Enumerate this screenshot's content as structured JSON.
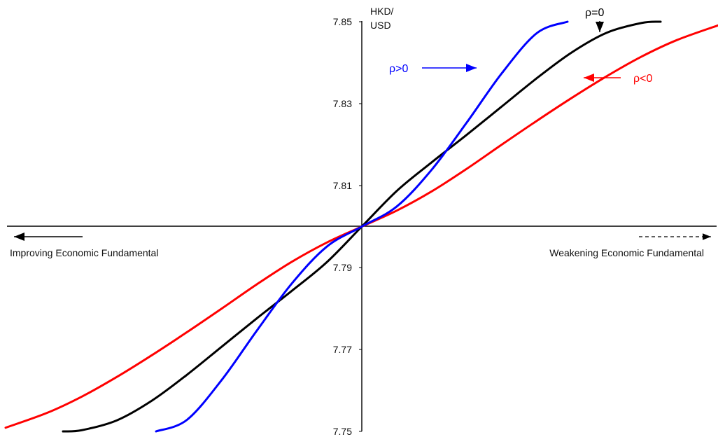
{
  "chart_data": {
    "type": "line",
    "title": "",
    "ylabel_lines": [
      "HKD/",
      "USD"
    ],
    "x_left_label": "Improving Economic Fundamental",
    "x_right_label": "Weakening Economic Fundamental",
    "ylim": [
      7.75,
      7.85
    ],
    "yticks": [
      7.75,
      7.77,
      7.79,
      7.81,
      7.83,
      7.85
    ],
    "ytick_labels": [
      "7.75",
      "7.77",
      "7.79",
      "7.81",
      "7.83",
      "7.85"
    ],
    "grid": false,
    "colors": {
      "blue": "#0000ff",
      "black": "#000000",
      "red": "#ff0000"
    },
    "series": [
      {
        "name": "ρ>0",
        "color": "#0000ff",
        "x": [
          -294,
          -250,
          -200,
          -150,
          -100,
          -50,
          0,
          50,
          100,
          150,
          200,
          250,
          294
        ],
        "y": [
          7.75,
          7.7528,
          7.7626,
          7.7746,
          7.7861,
          7.7951,
          7.8,
          7.8049,
          7.8139,
          7.8254,
          7.8374,
          7.8472,
          7.85
        ]
      },
      {
        "name": "ρ=0",
        "color": "#000000",
        "x": [
          -427,
          -400,
          -350,
          -300,
          -250,
          -200,
          -150,
          -100,
          -50,
          0,
          50,
          100,
          150,
          200,
          250,
          300,
          350,
          400,
          427
        ],
        "y": [
          7.75,
          7.7503,
          7.7527,
          7.7575,
          7.7638,
          7.7707,
          7.7776,
          7.7843,
          7.7913,
          7.8,
          7.8087,
          7.8157,
          7.8224,
          7.8293,
          7.8362,
          7.8425,
          7.8473,
          7.8497,
          7.85
        ]
      },
      {
        "name": "ρ<0",
        "color": "#ff0000",
        "x": [
          -509,
          -450,
          -400,
          -350,
          -300,
          -250,
          -200,
          -150,
          -100,
          -50,
          0,
          50,
          100,
          150,
          200,
          250,
          300,
          350,
          400,
          450,
          509
        ],
        "y": [
          7.7509,
          7.7545,
          7.7585,
          7.7633,
          7.7686,
          7.7742,
          7.78,
          7.7859,
          7.7914,
          7.7961,
          7.8,
          7.8039,
          7.8086,
          7.8141,
          7.82,
          7.8258,
          7.8314,
          7.8367,
          7.8415,
          7.8455,
          7.8491
        ]
      }
    ]
  }
}
